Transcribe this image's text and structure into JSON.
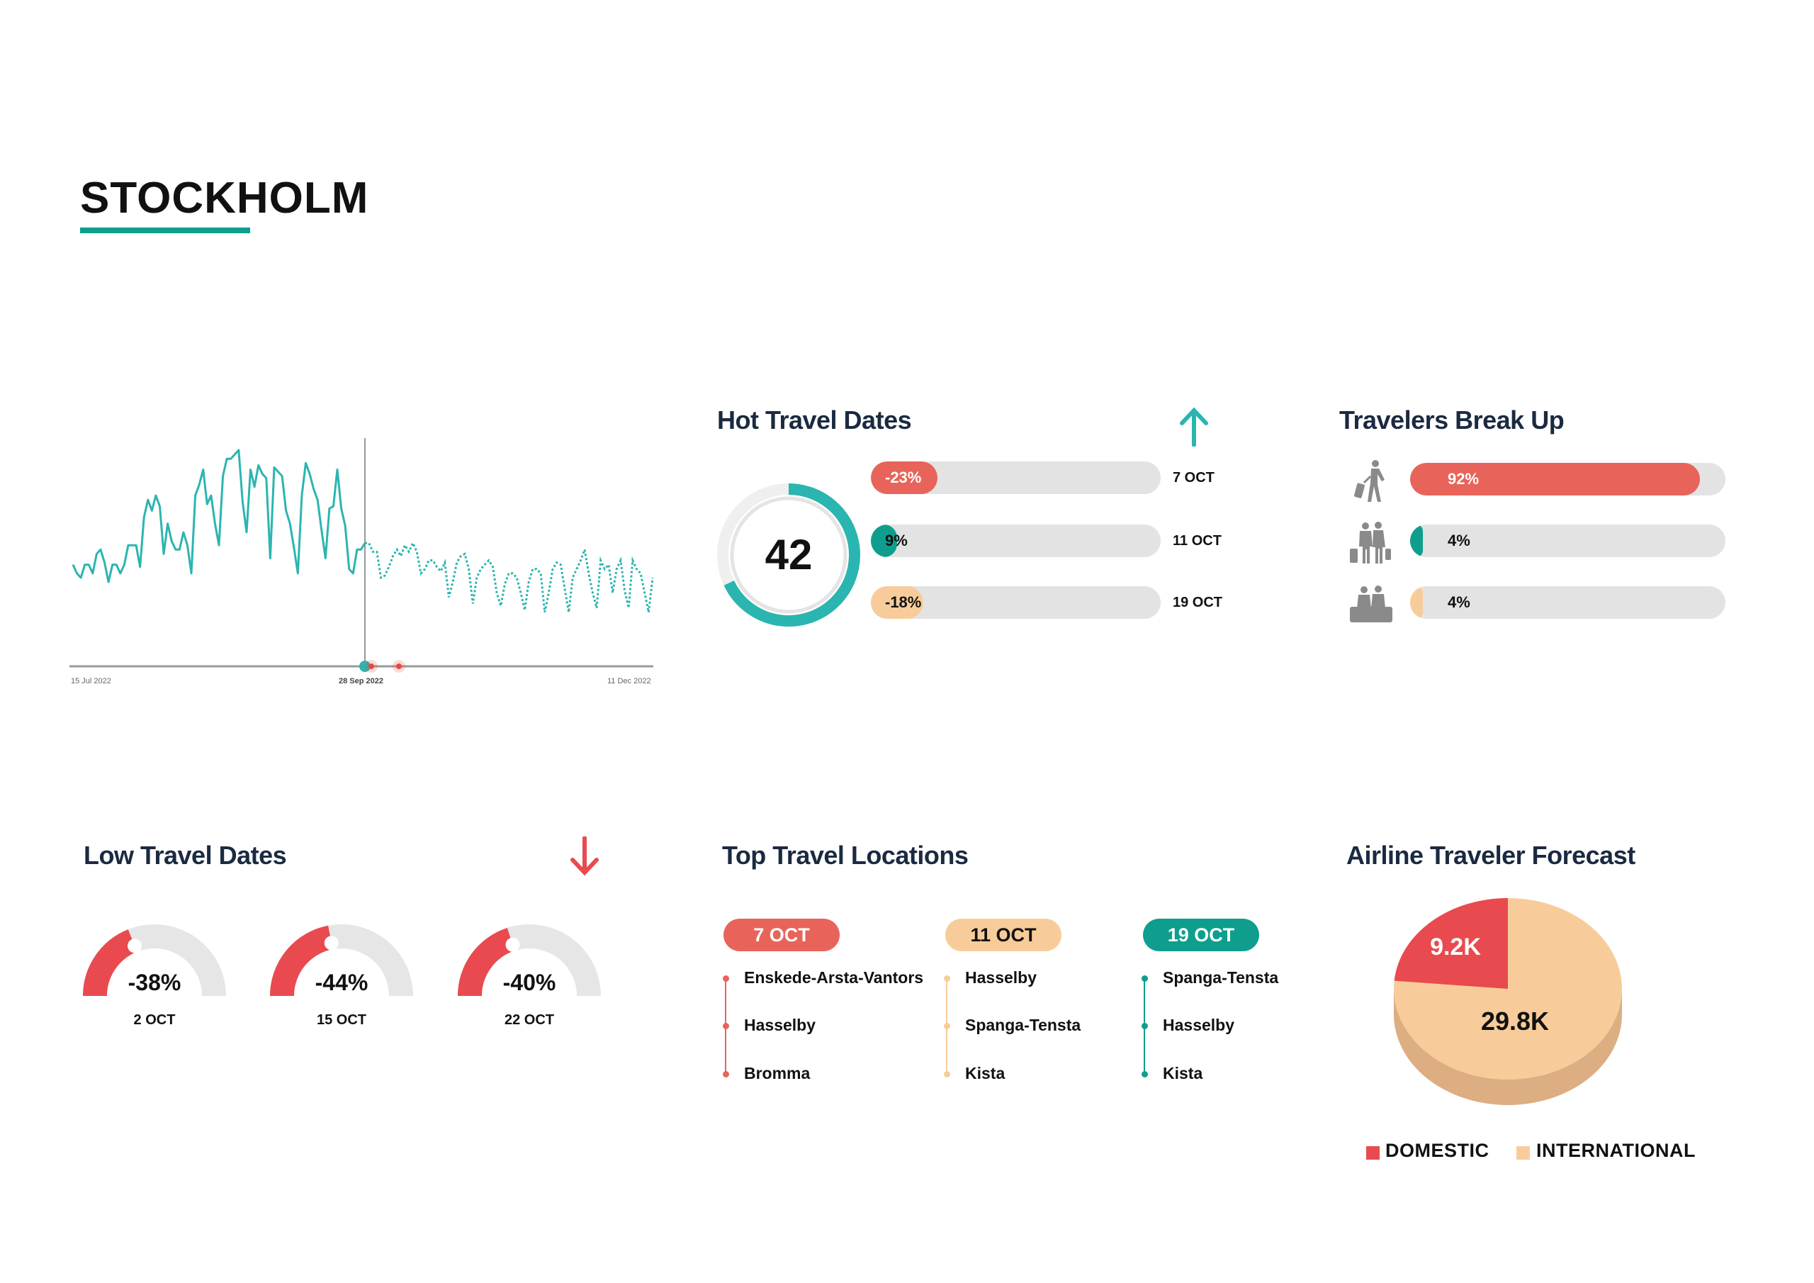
{
  "page": {
    "title": "STOCKHOLM"
  },
  "colors": {
    "teal": "#2bb5b0",
    "dark_teal": "#0f9e8e",
    "red": "#e8645a",
    "gauge_red": "#e84a50",
    "peach": "#f8cc9a",
    "pie_side": "#dcae82",
    "navy": "#1b2a41",
    "track": "#e3e3e3"
  },
  "line_chart": {
    "chart_data": {
      "type": "line",
      "x_start": "15 Jul 2022",
      "x_split": "28 Sep 2022",
      "x_end": "11 Dec 2022",
      "tick_labels": [
        "15 Jul 2022",
        "28 Sep 2022",
        "11 Dec 2022"
      ],
      "ylim": [
        0,
        100
      ],
      "grid": false,
      "series": [
        {
          "style": "solid",
          "values": [
            47,
            43,
            41,
            47,
            47,
            43,
            52,
            54,
            48,
            39,
            47,
            47,
            43,
            47,
            56,
            56,
            56,
            46,
            69,
            77,
            72,
            79,
            74,
            52,
            66,
            58,
            54,
            54,
            62,
            56,
            43,
            79,
            84,
            91,
            75,
            79,
            66,
            56,
            88,
            96,
            96,
            98,
            100,
            76,
            62,
            91,
            83,
            93,
            89,
            87,
            50,
            92,
            90,
            88,
            72,
            66,
            55,
            43,
            79,
            94,
            89,
            82,
            77,
            63,
            50,
            73,
            74,
            91,
            73,
            65,
            45,
            43,
            54,
            54,
            57
          ]
        },
        {
          "style": "dashed",
          "values": [
            57,
            53,
            53,
            41,
            42,
            46,
            51,
            54,
            51,
            56,
            53,
            57,
            53,
            43,
            45,
            49,
            49,
            46,
            44,
            48,
            32,
            39,
            48,
            51,
            52,
            45,
            29,
            41,
            45,
            47,
            49,
            46,
            34,
            28,
            38,
            43,
            43,
            41,
            34,
            26,
            39,
            45,
            45,
            43,
            25,
            34,
            45,
            48,
            47,
            36,
            25,
            41,
            45,
            49,
            54,
            43,
            34,
            27,
            49,
            45,
            47,
            34,
            45,
            49,
            35,
            27,
            49,
            45,
            43,
            34,
            25,
            41
          ]
        }
      ],
      "markers": [
        {
          "date": "28 Sep 2022",
          "color": "#2bb5b0"
        },
        {
          "date": "30 Sep 2022",
          "color": "#e8483f"
        },
        {
          "date": "7 Oct 2022",
          "color": "#e8483f"
        }
      ]
    }
  },
  "hot_travel": {
    "title": "Hot Travel Dates",
    "arrow_icon": "arrow-up-icon",
    "score": "42",
    "ring_fill": 0.68,
    "rows": [
      {
        "change": "-23%",
        "fill": 23,
        "date": "7 OCT",
        "color": "#e8645a",
        "text_color": "#ffffff"
      },
      {
        "change": "9%",
        "fill": 9,
        "date": "11 OCT",
        "color": "#0f9e8e",
        "text_color": "#111111"
      },
      {
        "change": "-18%",
        "fill": 18,
        "date": "19 OCT",
        "color": "#f8cc9a",
        "text_color": "#111111"
      }
    ]
  },
  "travelers": {
    "title": "Travelers Break Up",
    "rows": [
      {
        "icon": "solo-traveler-icon",
        "percent": "92%",
        "fill": 92,
        "color": "#e8645a",
        "text_color": "#ffffff"
      },
      {
        "icon": "couple-traveler-icon",
        "percent": "4%",
        "fill": 4,
        "color": "#0f9e8e",
        "text_color": "#111111"
      },
      {
        "icon": "family-traveler-icon",
        "percent": "4%",
        "fill": 4,
        "color": "#f8cc9a",
        "text_color": "#111111"
      }
    ]
  },
  "low_travel": {
    "title": "Low Travel Dates",
    "arrow_icon": "arrow-down-icon",
    "gauges": [
      {
        "value": "-38%",
        "fill": 38,
        "date": "2 OCT"
      },
      {
        "value": "-44%",
        "fill": 44,
        "date": "15 OCT"
      },
      {
        "value": "-40%",
        "fill": 40,
        "date": "22 OCT"
      }
    ]
  },
  "top_locations": {
    "title": "Top Travel Locations",
    "columns": [
      {
        "date": "7 OCT",
        "color": "#e8645a",
        "pill_text": "#ffffff",
        "items": [
          "Enskede-Arsta-Vantors",
          "Hasselby",
          "Bromma"
        ]
      },
      {
        "date": "11 OCT",
        "color": "#f8cc9a",
        "pill_text": "#111111",
        "items": [
          "Hasselby",
          "Spanga-Tensta",
          "Kista"
        ]
      },
      {
        "date": "19 OCT",
        "color": "#0f9e8e",
        "pill_text": "#ffffff",
        "items": [
          "Spanga-Tensta",
          "Hasselby",
          "Kista"
        ]
      }
    ]
  },
  "forecast": {
    "title": "Airline Traveler Forecast",
    "chart_data": {
      "type": "pie",
      "slices": [
        {
          "name": "DOMESTIC",
          "value": 9.2,
          "label": "9.2K",
          "color": "#e84a50"
        },
        {
          "name": "INTERNATIONAL",
          "value": 29.8,
          "label": "29.8K",
          "color": "#f8cc9a"
        }
      ],
      "legend": "bottom"
    }
  }
}
